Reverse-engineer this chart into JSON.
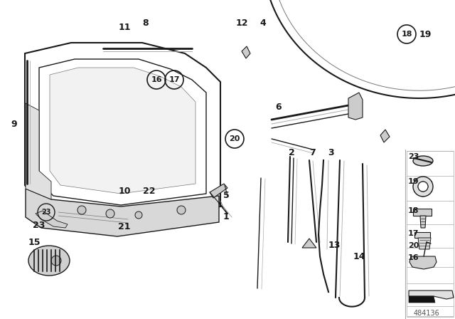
{
  "bg_color": "#ffffff",
  "fig_width": 6.4,
  "fig_height": 4.48,
  "dpi": 100,
  "part_number": "484136",
  "col": "#1a1a1a",
  "col_light": "#777777",
  "col_gray": "#aaaaaa",
  "col_fill": "#e8e8e8",
  "col_darkfill": "#cccccc"
}
